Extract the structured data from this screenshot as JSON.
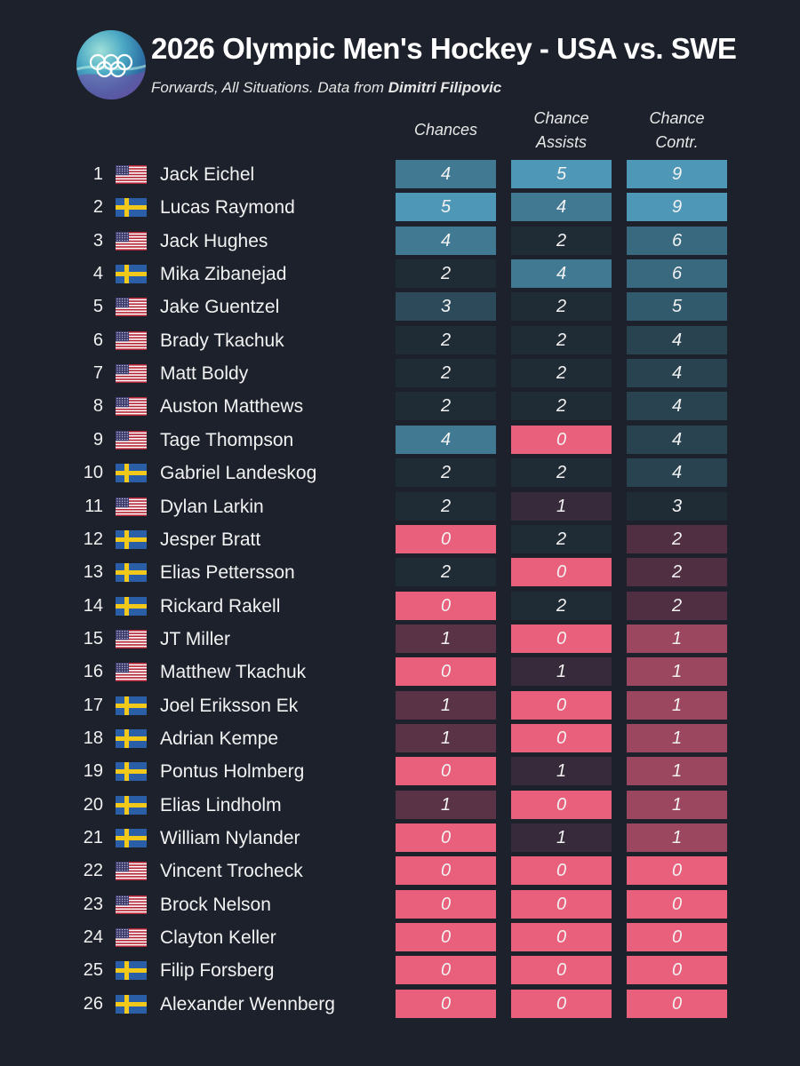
{
  "title": "2026 Olympic Men's Hockey - USA vs. SWE",
  "subtitle_prefix": "Forwards, All Situations. Data from ",
  "subtitle_source": "Dimitri Filipovic",
  "chart_data": {
    "type": "table",
    "columns": [
      {
        "key": "chances",
        "label_lines": [
          "Chances"
        ]
      },
      {
        "key": "assists",
        "label_lines": [
          "Chance",
          "Assists"
        ]
      },
      {
        "key": "contr",
        "label_lines": [
          "Chance",
          "Contr."
        ]
      }
    ],
    "rows": [
      {
        "rank": "1",
        "country": "USA",
        "name": "Jack Eichel",
        "chances": 4,
        "assists": 5,
        "contr": 9
      },
      {
        "rank": "2",
        "country": "SWE",
        "name": "Lucas Raymond",
        "chances": 5,
        "assists": 4,
        "contr": 9
      },
      {
        "rank": "3",
        "country": "USA",
        "name": "Jack Hughes",
        "chances": 4,
        "assists": 2,
        "contr": 6
      },
      {
        "rank": "4",
        "country": "SWE",
        "name": "Mika Zibanejad",
        "chances": 2,
        "assists": 4,
        "contr": 6
      },
      {
        "rank": "5",
        "country": "USA",
        "name": "Jake Guentzel",
        "chances": 3,
        "assists": 2,
        "contr": 5
      },
      {
        "rank": "6",
        "country": "USA",
        "name": "Brady Tkachuk",
        "chances": 2,
        "assists": 2,
        "contr": 4
      },
      {
        "rank": "7",
        "country": "USA",
        "name": "Matt Boldy",
        "chances": 2,
        "assists": 2,
        "contr": 4
      },
      {
        "rank": "8",
        "country": "USA",
        "name": "Auston Matthews",
        "chances": 2,
        "assists": 2,
        "contr": 4
      },
      {
        "rank": "9",
        "country": "USA",
        "name": "Tage Thompson",
        "chances": 4,
        "assists": 0,
        "contr": 4
      },
      {
        "rank": "10",
        "country": "SWE",
        "name": "Gabriel Landeskog",
        "chances": 2,
        "assists": 2,
        "contr": 4
      },
      {
        "rank": "11",
        "country": "USA",
        "name": "Dylan Larkin",
        "chances": 2,
        "assists": 1,
        "contr": 3
      },
      {
        "rank": "12",
        "country": "SWE",
        "name": "Jesper Bratt",
        "chances": 0,
        "assists": 2,
        "contr": 2
      },
      {
        "rank": "13",
        "country": "SWE",
        "name": "Elias Pettersson",
        "chances": 2,
        "assists": 0,
        "contr": 2
      },
      {
        "rank": "14",
        "country": "SWE",
        "name": "Rickard Rakell",
        "chances": 0,
        "assists": 2,
        "contr": 2
      },
      {
        "rank": "15",
        "country": "USA",
        "name": "JT Miller",
        "chances": 1,
        "assists": 0,
        "contr": 1
      },
      {
        "rank": "16",
        "country": "USA",
        "name": "Matthew Tkachuk",
        "chances": 0,
        "assists": 1,
        "contr": 1
      },
      {
        "rank": "17",
        "country": "SWE",
        "name": "Joel Eriksson Ek",
        "chances": 1,
        "assists": 0,
        "contr": 1
      },
      {
        "rank": "18",
        "country": "SWE",
        "name": "Adrian Kempe",
        "chances": 1,
        "assists": 0,
        "contr": 1
      },
      {
        "rank": "19",
        "country": "SWE",
        "name": "Pontus Holmberg",
        "chances": 0,
        "assists": 1,
        "contr": 1
      },
      {
        "rank": "20",
        "country": "SWE",
        "name": "Elias Lindholm",
        "chances": 1,
        "assists": 0,
        "contr": 1
      },
      {
        "rank": "21",
        "country": "SWE",
        "name": "William Nylander",
        "chances": 0,
        "assists": 1,
        "contr": 1
      },
      {
        "rank": "22",
        "country": "USA",
        "name": "Vincent Trocheck",
        "chances": 0,
        "assists": 0,
        "contr": 0
      },
      {
        "rank": "23",
        "country": "USA",
        "name": "Brock Nelson",
        "chances": 0,
        "assists": 0,
        "contr": 0
      },
      {
        "rank": "24",
        "country": "USA",
        "name": "Clayton Keller",
        "chances": 0,
        "assists": 0,
        "contr": 0
      },
      {
        "rank": "25",
        "country": "SWE",
        "name": "Filip Forsberg",
        "chances": 0,
        "assists": 0,
        "contr": 0
      },
      {
        "rank": "26",
        "country": "SWE",
        "name": "Alexander Wennberg",
        "chances": 0,
        "assists": 0,
        "contr": 0
      }
    ],
    "colors": {
      "background": "#1c212b",
      "zero": "#e8607c",
      "one_assists": "#372a3a",
      "one_chances": "#5a3446",
      "one_contr": "#9c4760",
      "two_contr": "#4f2f41",
      "scale_low": "#1f2b35",
      "scale_mid": "#325a6d",
      "scale_high": "#4f97b6"
    }
  }
}
